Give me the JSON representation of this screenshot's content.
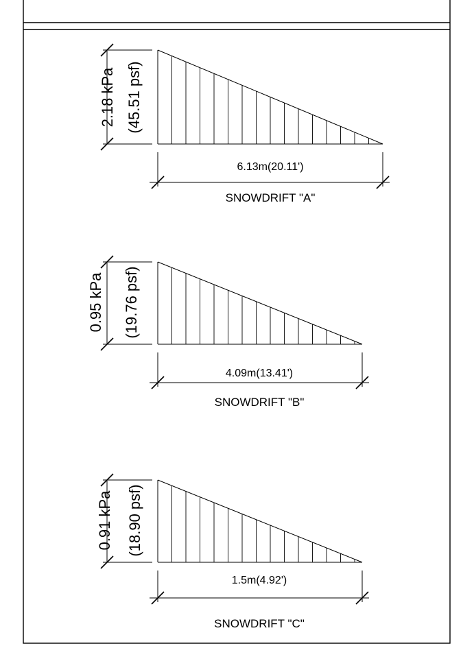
{
  "diagrams": [
    {
      "load_kpa": "2.18 kPa",
      "load_psf": "(45.51 psf)",
      "length": "6.13m(20.11')",
      "caption": "SNOWDRIFT \"A\""
    },
    {
      "load_kpa": "0.95 kPa",
      "load_psf": "(19.76 psf)",
      "length": "4.09m(13.41')",
      "caption": "SNOWDRIFT \"B\""
    },
    {
      "load_kpa": "0.91 kPa",
      "load_psf": "(18.90 psf)",
      "length": "1.5m(4.92')",
      "caption": "SNOWDRIFT \"C\""
    }
  ]
}
